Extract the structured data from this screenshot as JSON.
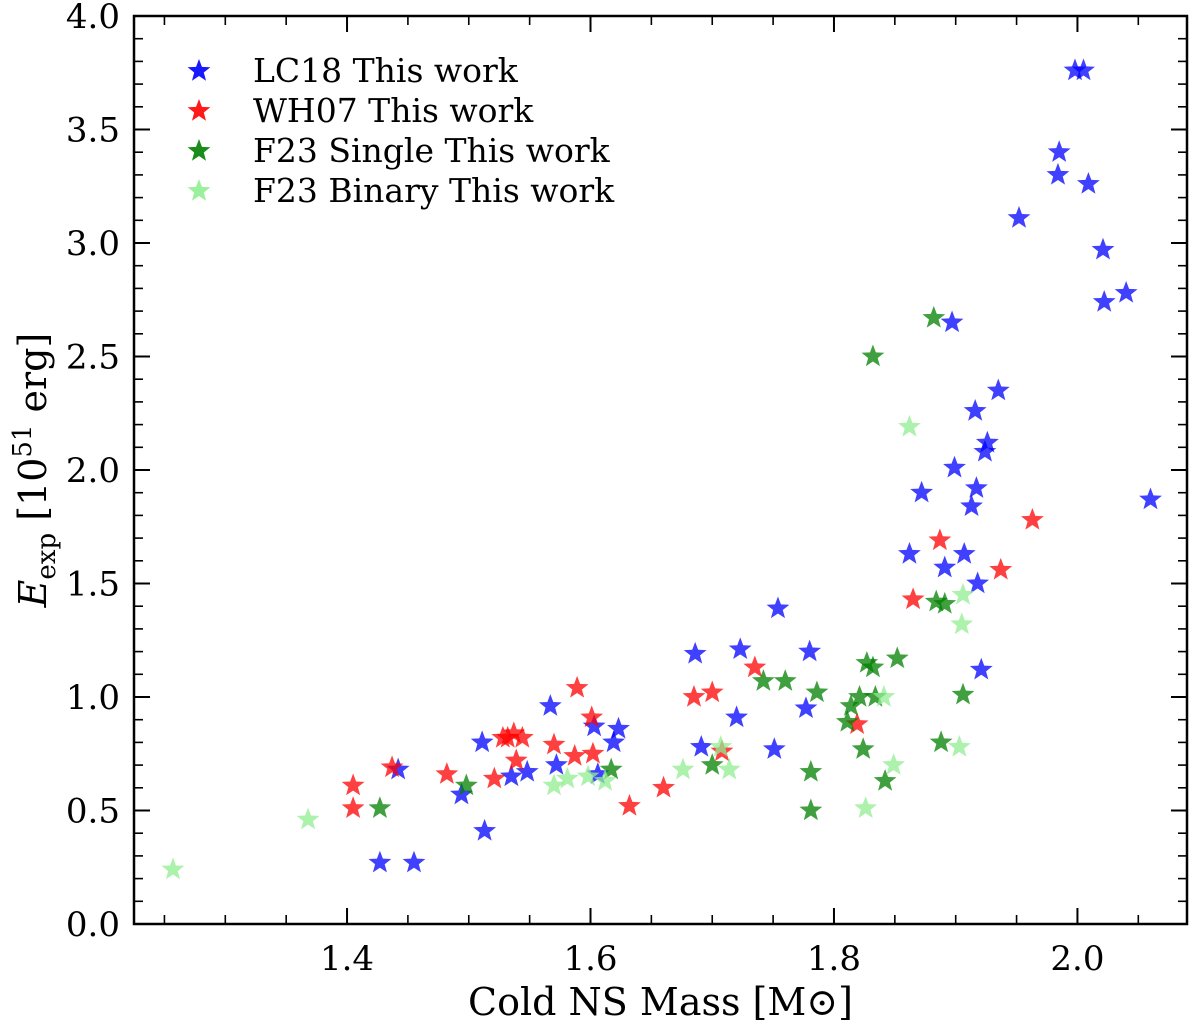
{
  "chart_data": {
    "type": "scatter",
    "title": "",
    "xlabel": "Cold NS Mass [M⊙]",
    "ylabel": {
      "symbol": "E",
      "subscript": "exp",
      "prefix": " [10",
      "superscript": "51",
      "suffix": " erg]"
    },
    "xlim": [
      1.225,
      2.09
    ],
    "ylim": [
      0.0,
      4.0
    ],
    "xticks": [
      "1.4",
      "1.6",
      "1.8",
      "2.0"
    ],
    "xtick_values": [
      1.4,
      1.6,
      1.8,
      2.0
    ],
    "yticks": [
      "0.0",
      "0.5",
      "1.0",
      "1.5",
      "2.0",
      "2.5",
      "3.0",
      "3.5",
      "4.0"
    ],
    "ytick_values": [
      0.0,
      0.5,
      1.0,
      1.5,
      2.0,
      2.5,
      3.0,
      3.5,
      4.0
    ],
    "grid": false,
    "legend_position": "top-left",
    "marker": "star",
    "series": [
      {
        "name": "LC18 This work",
        "color": "#0000ff",
        "points": [
          [
            1.427,
            0.27
          ],
          [
            1.455,
            0.27
          ],
          [
            1.442,
            0.68
          ],
          [
            1.494,
            0.57
          ],
          [
            1.511,
            0.8
          ],
          [
            1.513,
            0.41
          ],
          [
            1.535,
            0.65
          ],
          [
            1.548,
            0.67
          ],
          [
            1.567,
            0.96
          ],
          [
            1.572,
            0.7
          ],
          [
            1.603,
            0.87
          ],
          [
            1.606,
            0.66
          ],
          [
            1.619,
            0.8
          ],
          [
            1.623,
            0.86
          ],
          [
            1.686,
            1.19
          ],
          [
            1.691,
            0.78
          ],
          [
            1.72,
            0.91
          ],
          [
            1.723,
            1.21
          ],
          [
            1.751,
            0.77
          ],
          [
            1.754,
            1.39
          ],
          [
            1.777,
            0.95
          ],
          [
            1.78,
            1.2
          ],
          [
            1.862,
            1.63
          ],
          [
            1.872,
            1.9
          ],
          [
            1.891,
            1.57
          ],
          [
            1.899,
            2.01
          ],
          [
            1.897,
            2.65
          ],
          [
            1.907,
            1.63
          ],
          [
            1.913,
            1.84
          ],
          [
            1.916,
            2.26
          ],
          [
            1.917,
            1.92
          ],
          [
            1.918,
            1.5
          ],
          [
            1.921,
            1.12
          ],
          [
            1.924,
            2.08
          ],
          [
            1.926,
            2.12
          ],
          [
            1.935,
            2.35
          ],
          [
            1.952,
            3.11
          ],
          [
            1.985,
            3.4
          ],
          [
            1.984,
            3.3
          ],
          [
            1.998,
            3.76
          ],
          [
            2.005,
            3.76
          ],
          [
            2.009,
            3.26
          ],
          [
            2.021,
            2.97
          ],
          [
            2.022,
            2.74
          ],
          [
            2.04,
            2.78
          ],
          [
            2.06,
            1.87
          ]
        ]
      },
      {
        "name": "WH07 This work",
        "color": "#ff0000",
        "points": [
          [
            1.405,
            0.61
          ],
          [
            1.405,
            0.51
          ],
          [
            1.437,
            0.69
          ],
          [
            1.482,
            0.66
          ],
          [
            1.521,
            0.64
          ],
          [
            1.528,
            0.82
          ],
          [
            1.532,
            0.82
          ],
          [
            1.537,
            0.84
          ],
          [
            1.539,
            0.72
          ],
          [
            1.544,
            0.82
          ],
          [
            1.57,
            0.79
          ],
          [
            1.587,
            0.74
          ],
          [
            1.589,
            1.04
          ],
          [
            1.601,
            0.91
          ],
          [
            1.602,
            0.75
          ],
          [
            1.632,
            0.52
          ],
          [
            1.66,
            0.6
          ],
          [
            1.685,
            1.0
          ],
          [
            1.7,
            1.02
          ],
          [
            1.708,
            0.76
          ],
          [
            1.735,
            1.13
          ],
          [
            1.819,
            0.88
          ],
          [
            1.865,
            1.43
          ],
          [
            1.887,
            1.69
          ],
          [
            1.937,
            1.56
          ],
          [
            1.963,
            1.78
          ]
        ]
      },
      {
        "name": "F23 Single This work",
        "color": "#008000",
        "points": [
          [
            1.427,
            0.51
          ],
          [
            1.498,
            0.61
          ],
          [
            1.617,
            0.68
          ],
          [
            1.7,
            0.7
          ],
          [
            1.742,
            1.07
          ],
          [
            1.76,
            1.07
          ],
          [
            1.781,
            0.67
          ],
          [
            1.781,
            0.5
          ],
          [
            1.786,
            1.02
          ],
          [
            1.811,
            0.89
          ],
          [
            1.814,
            0.96
          ],
          [
            1.821,
            1.0
          ],
          [
            1.824,
            0.77
          ],
          [
            1.827,
            1.15
          ],
          [
            1.832,
            2.5
          ],
          [
            1.832,
            1.13
          ],
          [
            1.834,
            1.0
          ],
          [
            1.842,
            0.63
          ],
          [
            1.852,
            1.17
          ],
          [
            1.882,
            2.67
          ],
          [
            1.884,
            1.42
          ],
          [
            1.891,
            1.41
          ],
          [
            1.888,
            0.8
          ],
          [
            1.906,
            1.01
          ]
        ]
      },
      {
        "name": "F23 Binary This work",
        "color": "#90ee90",
        "points": [
          [
            1.257,
            0.24
          ],
          [
            1.368,
            0.46
          ],
          [
            1.57,
            0.61
          ],
          [
            1.581,
            0.64
          ],
          [
            1.598,
            0.65
          ],
          [
            1.612,
            0.63
          ],
          [
            1.676,
            0.68
          ],
          [
            1.707,
            0.78
          ],
          [
            1.714,
            0.68
          ],
          [
            1.826,
            0.51
          ],
          [
            1.841,
            1.0
          ],
          [
            1.849,
            0.7
          ],
          [
            1.862,
            2.19
          ],
          [
            1.903,
            0.78
          ],
          [
            1.905,
            1.32
          ],
          [
            1.906,
            1.45
          ]
        ]
      }
    ]
  }
}
